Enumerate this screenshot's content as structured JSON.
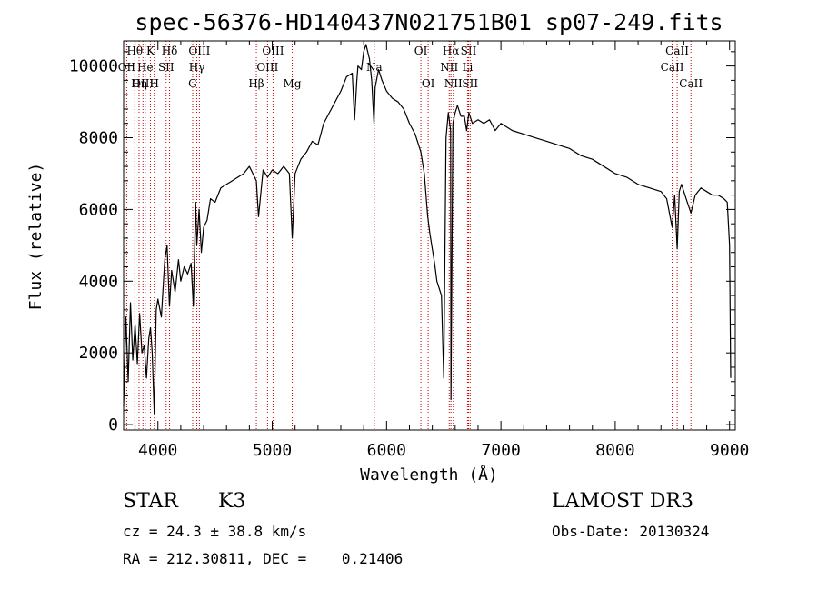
{
  "chart_data": {
    "type": "line",
    "title": "spec-56376-HD140437N021751B01_sp07-249.fits",
    "xlabel": "Wavelength (Å)",
    "ylabel": "Flux (relative)",
    "xlim": [
      3700,
      9050
    ],
    "ylim": [
      -150,
      10700
    ],
    "x_ticks": [
      4000,
      5000,
      6000,
      7000,
      8000,
      9000
    ],
    "y_ticks": [
      0,
      2000,
      4000,
      6000,
      8000,
      10000
    ],
    "x_tick_labels": [
      "4000",
      "5000",
      "6000",
      "7000",
      "8000",
      "9000"
    ],
    "y_tick_labels": [
      "0",
      "2000",
      "4000",
      "6000",
      "8000",
      "10000"
    ],
    "grid": false,
    "series": [
      {
        "color": "#000000",
        "x": [
          3700,
          3720,
          3740,
          3760,
          3780,
          3800,
          3820,
          3840,
          3860,
          3880,
          3900,
          3920,
          3935,
          3950,
          3968,
          3985,
          4000,
          4030,
          4060,
          4080,
          4101,
          4120,
          4150,
          4180,
          4200,
          4230,
          4260,
          4290,
          4310,
          4330,
          4340,
          4360,
          4380,
          4400,
          4430,
          4460,
          4500,
          4550,
          4600,
          4650,
          4700,
          4750,
          4800,
          4861,
          4880,
          4920,
          4960,
          5000,
          5050,
          5100,
          5150,
          5175,
          5200,
          5250,
          5300,
          5350,
          5400,
          5450,
          5500,
          5550,
          5600,
          5650,
          5700,
          5720,
          5740,
          5750,
          5780,
          5800,
          5820,
          5850,
          5870,
          5890,
          5900,
          5930,
          5960,
          6000,
          6050,
          6100,
          6150,
          6200,
          6250,
          6300,
          6330,
          6360,
          6380,
          6400,
          6420,
          6440,
          6460,
          6480,
          6500,
          6520,
          6540,
          6560,
          6563,
          6580,
          6600,
          6620,
          6650,
          6680,
          6700,
          6720,
          6750,
          6800,
          6850,
          6900,
          6950,
          7000,
          7100,
          7200,
          7300,
          7400,
          7500,
          7600,
          7700,
          7800,
          7900,
          8000,
          8100,
          8200,
          8300,
          8400,
          8450,
          8498,
          8520,
          8542,
          8560,
          8580,
          8620,
          8662,
          8700,
          8750,
          8800,
          8850,
          8900,
          8950,
          8980,
          9000,
          9010
        ],
        "y": [
          500,
          3000,
          1200,
          3400,
          1800,
          2800,
          1700,
          3100,
          2000,
          2200,
          1300,
          2400,
          2700,
          2000,
          300,
          3200,
          3500,
          3000,
          4600,
          5000,
          3300,
          4300,
          3700,
          4600,
          4000,
          4400,
          4200,
          4500,
          3300,
          6200,
          5000,
          6000,
          4800,
          5500,
          5700,
          6300,
          6200,
          6600,
          6700,
          6800,
          6900,
          7000,
          7200,
          6800,
          5800,
          7100,
          6900,
          7100,
          7000,
          7200,
          7000,
          5200,
          7000,
          7400,
          7600,
          7900,
          7800,
          8400,
          8700,
          9000,
          9300,
          9700,
          9800,
          8500,
          9600,
          10000,
          9900,
          10400,
          10600,
          10200,
          9600,
          8400,
          9400,
          9900,
          9600,
          9300,
          9100,
          9000,
          8800,
          8400,
          8100,
          7600,
          7000,
          5800,
          5300,
          4900,
          4500,
          4000,
          3800,
          3600,
          1300,
          8000,
          8700,
          8200,
          700,
          8400,
          8700,
          8900,
          8600,
          8600,
          8200,
          8700,
          8400,
          8500,
          8400,
          8500,
          8200,
          8400,
          8200,
          8100,
          8000,
          7900,
          7800,
          7700,
          7500,
          7400,
          7200,
          7000,
          6900,
          6700,
          6600,
          6500,
          6300,
          5500,
          6400,
          4900,
          6500,
          6700,
          6300,
          5900,
          6400,
          6600,
          6500,
          6400,
          6400,
          6300,
          6200,
          5000,
          1300
        ]
      }
    ],
    "line_markers": [
      {
        "label": "Hθ",
        "wavelength": 3798,
        "row": 0
      },
      {
        "label": "OII",
        "wavelength": 3727,
        "row": 1
      },
      {
        "label": "OIII",
        "wavelength": 3869,
        "row": 2
      },
      {
        "label": "K",
        "wavelength": 3934,
        "row": 0
      },
      {
        "label": "He",
        "wavelength": 3889,
        "row": 1
      },
      {
        "label": "Hη",
        "wavelength": 3835,
        "row": 2
      },
      {
        "label": "Hδ",
        "wavelength": 4102,
        "row": 0
      },
      {
        "label": "SII",
        "wavelength": 4072,
        "row": 1
      },
      {
        "label": "H",
        "wavelength": 3968,
        "row": 2
      },
      {
        "label": "OIII",
        "wavelength": 4363,
        "row": 0
      },
      {
        "label": "Hγ",
        "wavelength": 4340,
        "row": 1
      },
      {
        "label": "G",
        "wavelength": 4304,
        "row": 2
      },
      {
        "label": "OIII",
        "wavelength": 5007,
        "row": 0
      },
      {
        "label": "OIII",
        "wavelength": 4959,
        "row": 1
      },
      {
        "label": "Hβ",
        "wavelength": 4861,
        "row": 2
      },
      {
        "label": "Mg",
        "wavelength": 5175,
        "row": 2
      },
      {
        "label": "Na",
        "wavelength": 5893,
        "row": 1
      },
      {
        "label": "OI",
        "wavelength": 6300,
        "row": 0
      },
      {
        "label": "OI",
        "wavelength": 6364,
        "row": 2
      },
      {
        "label": "Hα",
        "wavelength": 6563,
        "row": 0
      },
      {
        "label": "NII",
        "wavelength": 6548,
        "row": 1
      },
      {
        "label": "NII",
        "wavelength": 6584,
        "row": 2
      },
      {
        "label": "SII",
        "wavelength": 6717,
        "row": 0
      },
      {
        "label": "Li",
        "wavelength": 6708,
        "row": 1
      },
      {
        "label": "SII",
        "wavelength": 6731,
        "row": 2
      },
      {
        "label": "CaII",
        "wavelength": 8542,
        "row": 0
      },
      {
        "label": "CaII",
        "wavelength": 8498,
        "row": 1
      },
      {
        "label": "CaII",
        "wavelength": 8662,
        "row": 2
      }
    ]
  },
  "info": {
    "object_class": "STAR",
    "subclass": "K3",
    "survey": "LAMOST DR3",
    "redshift": "cz = 24.3 ± 38.8 km/s",
    "obs_date": "Obs-Date: 20130324",
    "coords": "RA = 212.30811, DEC =    0.21406"
  },
  "colors": {
    "spectrum": "#000000",
    "marker_line": "#cc0000",
    "background": "#ffffff"
  }
}
